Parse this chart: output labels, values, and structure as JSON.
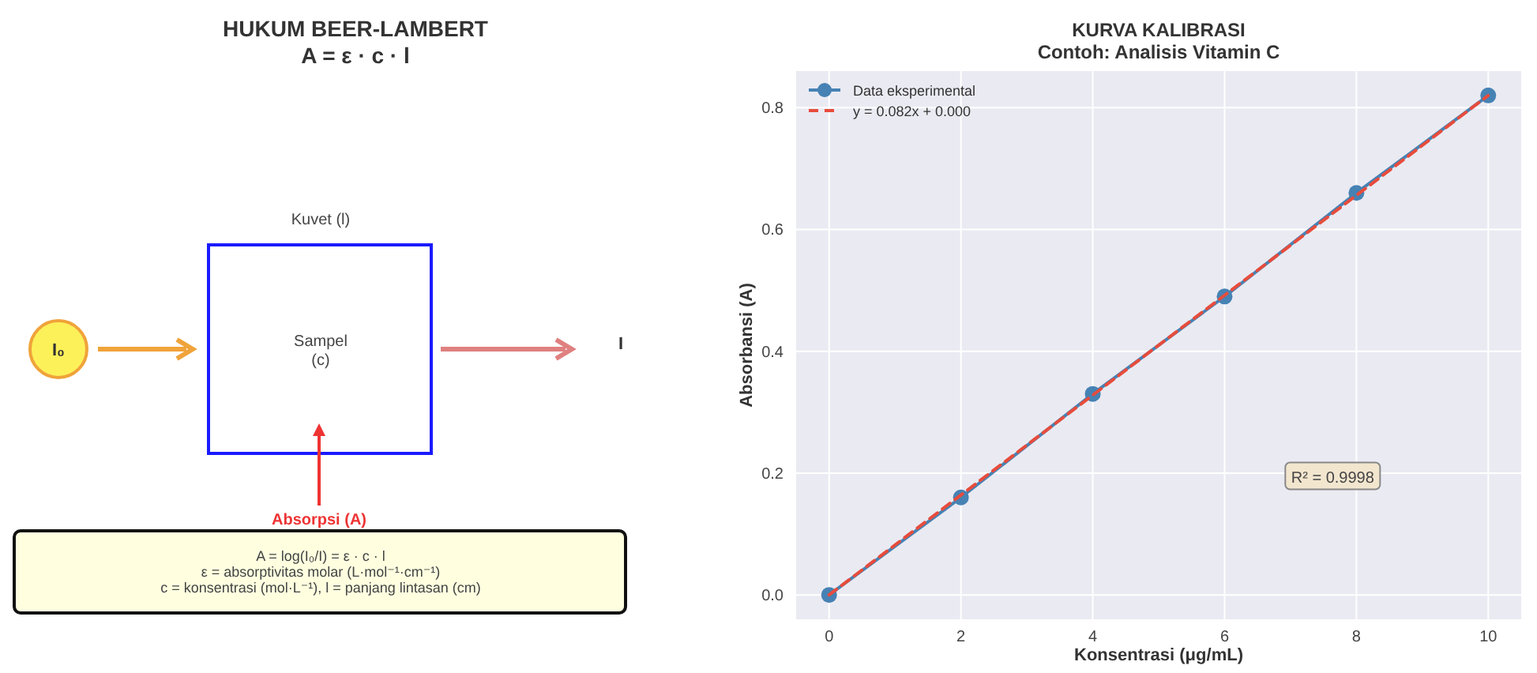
{
  "chart_data": [
    {
      "type": "other",
      "title": "HUKUM BEER-LAMBERT",
      "subtitle": "A = ε · c · l",
      "annotations": [
        "I₀",
        "Kuvet (l)",
        "Sampel\n(c)",
        "I",
        "Absorpsi (A)",
        "A = log(I₀/I) = ε · c · l\nε = absorptivitas molar (L·mol⁻¹·cm⁻¹)\nc = konsentrasi (mol·L⁻¹), l = panjang lintasan (cm)"
      ]
    },
    {
      "type": "line",
      "title": "KURVA KALIBRASI",
      "subtitle": "Contoh: Analisis Vitamin C",
      "xlabel": "Konsentrasi (μg/mL)",
      "ylabel": "Absorbansi (A)",
      "xlim": [
        -0.5,
        10.5
      ],
      "ylim": [
        -0.04,
        0.86
      ],
      "xticks": [
        0,
        2,
        4,
        6,
        8,
        10
      ],
      "yticks": [
        {
          "value": 0,
          "label": "0.0"
        },
        {
          "value": 0.2,
          "label": "0.2"
        },
        {
          "value": 0.4,
          "label": "0.4"
        },
        {
          "value": 0.6,
          "label": "0.6"
        },
        {
          "value": 0.8,
          "label": "0.8"
        }
      ],
      "grid": true,
      "legend": "top left",
      "annotations": [
        "R² = 0.9998"
      ],
      "series": [
        {
          "name": "Data eksperimental",
          "color": "#4682b4",
          "x": [
            0,
            2,
            4,
            6,
            8,
            10
          ],
          "values": [
            0,
            0.16,
            0.33,
            0.49,
            0.66,
            0.82
          ],
          "marker": "circle",
          "line_style": "solid"
        },
        {
          "name": "y = 0.082x + 0.000",
          "color": "#e74c3c",
          "x": [
            0,
            10
          ],
          "values": [
            0,
            0.82
          ],
          "marker": "none",
          "line_style": "dashed"
        }
      ]
    }
  ]
}
